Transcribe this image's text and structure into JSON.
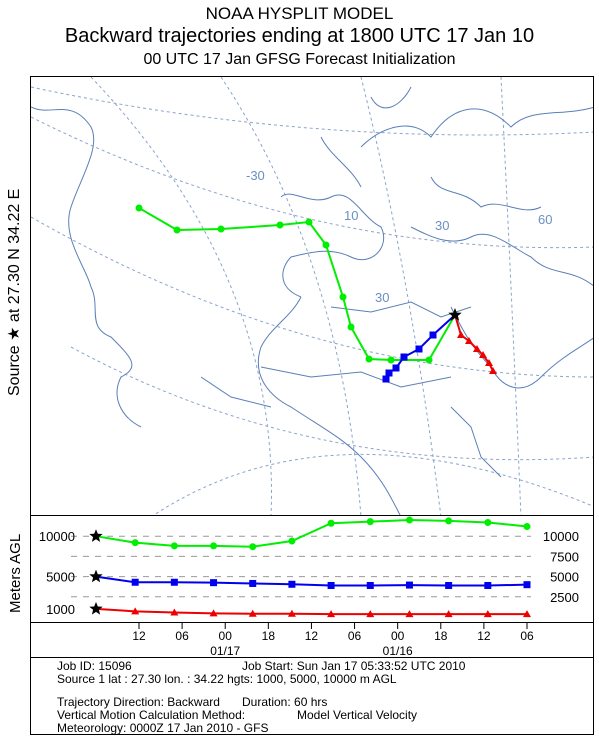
{
  "header": {
    "line1": "NOAA HYSPLIT MODEL",
    "line2": "Backward trajectories ending at 1800 UTC 17 Jan 10",
    "line3": "00 UTC 17 Jan     GFSG  Forecast Initialization"
  },
  "side_label": "Source ★ at    27.30 N    34.22 E",
  "y_axis_label": "Meters AGL",
  "map": {
    "grid_labels": [
      "-30",
      "-30",
      "10",
      "30",
      "30",
      "60"
    ],
    "source_lat": 27.3,
    "source_lon": 34.22
  },
  "chart_data": {
    "type": "line",
    "xlabel": "",
    "ylabel": "Meters AGL",
    "x_tick_labels": [
      "12",
      "06",
      "00",
      "18",
      "12",
      "06",
      "00",
      "18",
      "12",
      "06"
    ],
    "date_labels": [
      "01/17",
      "01/16"
    ],
    "left_y_labels": [
      "10000",
      "5000",
      "1000"
    ],
    "right_y_labels": [
      "10000",
      "7500",
      "5000",
      "2500"
    ],
    "duration_hours": 60,
    "series": [
      {
        "name": "10000 m AGL",
        "color": "#00ee00",
        "marker": "circle",
        "values": [
          10000,
          9200,
          8800,
          8800,
          8700,
          9400,
          11600,
          11800,
          12000,
          11900,
          11700,
          11200
        ]
      },
      {
        "name": "5000 m AGL",
        "color": "#0000ee",
        "marker": "square",
        "values": [
          5000,
          4300,
          4300,
          4250,
          4150,
          4050,
          3900,
          3900,
          3950,
          3900,
          3900,
          4000
        ]
      },
      {
        "name": "1000 m AGL",
        "color": "#ee0000",
        "marker": "triangle",
        "values": [
          1000,
          700,
          550,
          450,
          400,
          400,
          350,
          350,
          350,
          350,
          350,
          350
        ]
      }
    ]
  },
  "info": {
    "job_id": "Job ID: 15096",
    "job_start": "Job Start: Sun Jan 17 05:33:52 UTC 2010",
    "source": "Source 1 lat : 27.30  lon. : 34.22  hgts: 1000, 5000, 10000 m AGL",
    "direction": "Trajectory Direction: Backward",
    "duration": "Duration: 60 hrs",
    "vertical": "Vertical Motion Calculation Method:",
    "vertical_value": "Model Vertical Velocity",
    "meteorology": "Meteorology: 0000Z 17 Jan 2010 - GFS"
  }
}
